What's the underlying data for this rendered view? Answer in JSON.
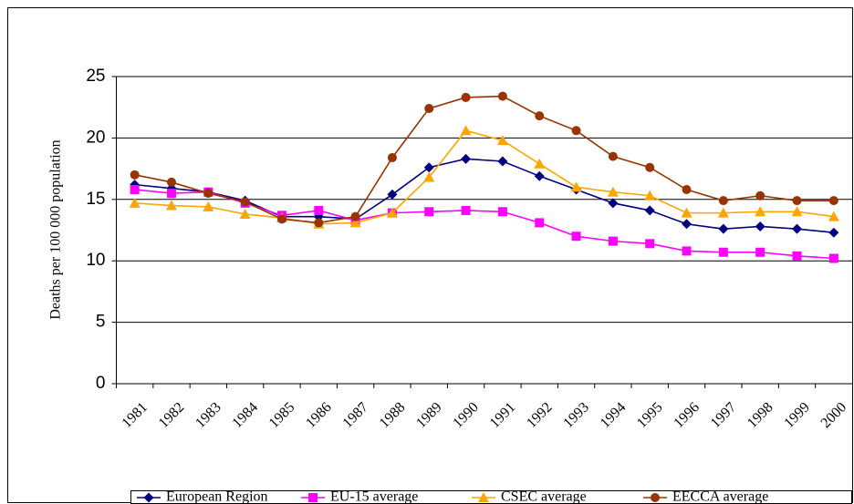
{
  "chart_data": {
    "type": "line",
    "y_label": "Deaths per 100 000 population",
    "categories": [
      "1981",
      "1982",
      "1983",
      "1984",
      "1985",
      "1986",
      "1987",
      "1988",
      "1989",
      "1990",
      "1991",
      "1992",
      "1993",
      "1994",
      "1995",
      "1996",
      "1997",
      "1998",
      "1999",
      "2000"
    ],
    "ylim": [
      0,
      25
    ],
    "yticks": [
      0,
      5,
      10,
      15,
      20,
      25
    ],
    "grid": true,
    "legend": "bottom",
    "series": [
      {
        "name": "European Region",
        "color": "#000080",
        "marker": "diamond",
        "values": [
          16.2,
          15.9,
          15.6,
          14.9,
          13.6,
          13.6,
          13.4,
          15.4,
          17.6,
          18.3,
          18.1,
          16.9,
          15.8,
          14.7,
          14.1,
          13.0,
          12.6,
          12.8,
          12.6,
          12.3
        ]
      },
      {
        "name": "EU-15 average",
        "color": "#ff00ff",
        "marker": "square",
        "values": [
          15.8,
          15.5,
          15.6,
          14.7,
          13.7,
          14.1,
          13.3,
          13.9,
          14.0,
          14.1,
          14.0,
          13.1,
          12.0,
          11.6,
          11.4,
          10.8,
          10.7,
          10.7,
          10.4,
          10.2
        ]
      },
      {
        "name": "CSEC average",
        "color": "#ffa500",
        "marker": "triangle",
        "values": [
          14.7,
          14.5,
          14.4,
          13.8,
          13.5,
          13.0,
          13.1,
          13.9,
          16.8,
          20.6,
          19.8,
          17.9,
          16.0,
          15.6,
          15.3,
          13.9,
          13.9,
          14.0,
          14.0,
          13.6
        ]
      },
      {
        "name": "EECCA average",
        "color": "#993300",
        "marker": "circle",
        "values": [
          17.0,
          16.4,
          15.5,
          14.8,
          13.4,
          13.1,
          13.6,
          18.4,
          22.4,
          23.3,
          23.4,
          21.8,
          20.6,
          18.5,
          17.6,
          15.8,
          14.9,
          15.3,
          14.9,
          14.9
        ]
      }
    ]
  }
}
